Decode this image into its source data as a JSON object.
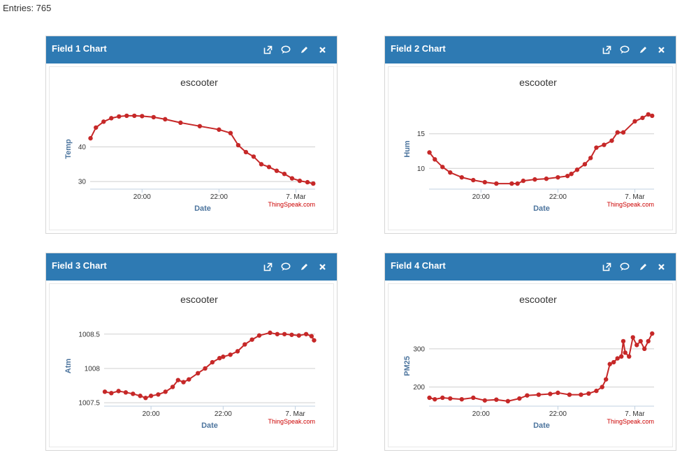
{
  "entries_label": "Entries: 765",
  "widgets": [
    {
      "title": "Field 1 Chart",
      "icons": [
        "external-link-icon",
        "comment-icon",
        "pencil-icon",
        "close-icon"
      ]
    },
    {
      "title": "Field 2 Chart",
      "icons": [
        "external-link-icon",
        "comment-icon",
        "pencil-icon",
        "close-icon"
      ]
    },
    {
      "title": "Field 3 Chart",
      "icons": [
        "external-link-icon",
        "comment-icon",
        "pencil-icon",
        "close-icon"
      ]
    },
    {
      "title": "Field 4 Chart",
      "icons": [
        "external-link-icon",
        "comment-icon",
        "pencil-icon",
        "close-icon"
      ]
    }
  ],
  "series_color": "#c62828",
  "header_color": "#2e7ab3",
  "chart_data": [
    {
      "type": "line",
      "title": "escooter",
      "xlabel": "Date",
      "ylabel": "Temp",
      "credit": "ThingSpeak.com",
      "x_ticks": [
        {
          "label": "20:00",
          "value": 20
        },
        {
          "label": "22:00",
          "value": 22
        },
        {
          "label": "7. Mar",
          "value": 24
        }
      ],
      "xlim": [
        18.65,
        24.5
      ],
      "ylim": [
        27.8,
        51
      ],
      "y_ticks": [
        {
          "label": "30",
          "value": 30
        },
        {
          "label": "40",
          "value": 40
        }
      ],
      "x": [
        18.66,
        18.8,
        19.0,
        19.2,
        19.4,
        19.6,
        19.8,
        20.0,
        20.3,
        20.6,
        21.0,
        21.5,
        22.0,
        22.3,
        22.5,
        22.7,
        22.9,
        23.1,
        23.3,
        23.5,
        23.7,
        23.9,
        24.1,
        24.3,
        24.45
      ],
      "y": [
        42.5,
        45.6,
        47.3,
        48.3,
        48.8,
        49.0,
        49.0,
        48.9,
        48.6,
        48.0,
        47.0,
        46.0,
        45.0,
        44.0,
        40.5,
        38.5,
        37.2,
        35.0,
        34.2,
        33.1,
        32.2,
        30.9,
        30.2,
        29.8,
        29.4
      ]
    },
    {
      "type": "line",
      "title": "escooter",
      "xlabel": "Date",
      "ylabel": "Hum",
      "credit": "ThingSpeak.com",
      "x_ticks": [
        {
          "label": "20:00",
          "value": 20
        },
        {
          "label": "22:00",
          "value": 22
        },
        {
          "label": "7. Mar",
          "value": 24
        }
      ],
      "xlim": [
        18.65,
        24.5
      ],
      "ylim": [
        7,
        18.6
      ],
      "y_ticks": [
        {
          "label": "10",
          "value": 10
        },
        {
          "label": "15",
          "value": 15
        }
      ],
      "x": [
        18.66,
        18.8,
        19.0,
        19.2,
        19.5,
        19.8,
        20.1,
        20.4,
        20.8,
        20.95,
        21.1,
        21.4,
        21.7,
        22.0,
        22.25,
        22.35,
        22.5,
        22.7,
        22.85,
        23.0,
        23.2,
        23.4,
        23.55,
        23.7,
        24.0,
        24.2,
        24.35,
        24.45
      ],
      "y": [
        12.3,
        11.3,
        10.2,
        9.4,
        8.7,
        8.3,
        8.0,
        7.8,
        7.8,
        7.8,
        8.2,
        8.4,
        8.5,
        8.7,
        8.9,
        9.2,
        9.8,
        10.6,
        11.5,
        13.0,
        13.4,
        14.0,
        15.2,
        15.2,
        16.8,
        17.3,
        17.8,
        17.6
      ]
    },
    {
      "type": "line",
      "title": "escooter",
      "xlabel": "Date",
      "ylabel": "Atm",
      "credit": "ThingSpeak.com",
      "x_ticks": [
        {
          "label": "20:00",
          "value": 20
        },
        {
          "label": "22:00",
          "value": 22
        },
        {
          "label": "7. Mar",
          "value": 24
        }
      ],
      "xlim": [
        18.7,
        24.55
      ],
      "ylim": [
        1007.45,
        1008.62
      ],
      "y_ticks": [
        {
          "label": "1007.5",
          "value": 1007.5
        },
        {
          "label": "1008",
          "value": 1008
        },
        {
          "label": "1008.5",
          "value": 1008.5
        }
      ],
      "x": [
        18.72,
        18.9,
        19.1,
        19.3,
        19.5,
        19.7,
        19.85,
        20.0,
        20.2,
        20.4,
        20.6,
        20.75,
        20.9,
        21.05,
        21.3,
        21.5,
        21.7,
        21.9,
        22.0,
        22.2,
        22.4,
        22.6,
        22.8,
        23.0,
        23.3,
        23.5,
        23.7,
        23.9,
        24.1,
        24.3,
        24.45,
        24.52
      ],
      "y": [
        1007.66,
        1007.64,
        1007.67,
        1007.65,
        1007.63,
        1007.6,
        1007.57,
        1007.6,
        1007.62,
        1007.66,
        1007.73,
        1007.83,
        1007.8,
        1007.84,
        1007.93,
        1008.0,
        1008.09,
        1008.15,
        1008.17,
        1008.2,
        1008.25,
        1008.35,
        1008.42,
        1008.48,
        1008.52,
        1008.5,
        1008.5,
        1008.49,
        1008.48,
        1008.5,
        1008.47,
        1008.41
      ]
    },
    {
      "type": "line",
      "title": "escooter",
      "xlabel": "Date",
      "ylabel": "PM25",
      "credit": "ThingSpeak.com",
      "x_ticks": [
        {
          "label": "20:00",
          "value": 20
        },
        {
          "label": "22:00",
          "value": 22
        },
        {
          "label": "7. Mar",
          "value": 24
        }
      ],
      "xlim": [
        18.65,
        24.5
      ],
      "ylim": [
        150,
        360
      ],
      "y_ticks": [
        {
          "label": "200",
          "value": 200
        },
        {
          "label": "300",
          "value": 300
        }
      ],
      "x": [
        18.66,
        18.8,
        19.0,
        19.2,
        19.5,
        19.8,
        20.1,
        20.4,
        20.7,
        21.0,
        21.2,
        21.5,
        21.8,
        22.0,
        22.3,
        22.6,
        22.8,
        23.0,
        23.15,
        23.25,
        23.35,
        23.45,
        23.55,
        23.65,
        23.7,
        23.75,
        23.85,
        23.95,
        24.05,
        24.15,
        24.25,
        24.35,
        24.45
      ],
      "y": [
        172,
        168,
        172,
        170,
        168,
        172,
        165,
        167,
        163,
        170,
        178,
        180,
        182,
        185,
        180,
        180,
        183,
        190,
        200,
        220,
        260,
        265,
        275,
        280,
        320,
        290,
        280,
        330,
        310,
        320,
        300,
        320,
        340
      ]
    }
  ]
}
